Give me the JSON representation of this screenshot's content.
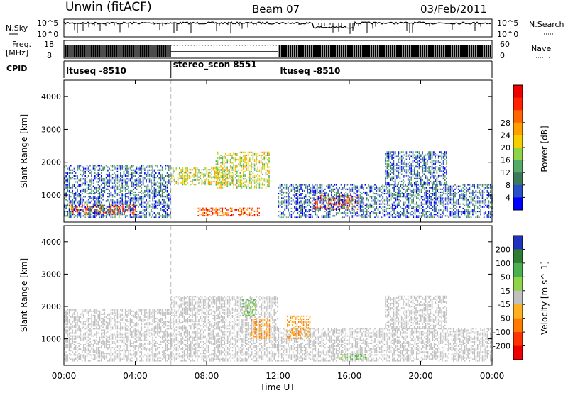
{
  "header": {
    "station": "Unwin (fitACF)",
    "beam": "Beam 07",
    "date": "03/Feb/2011"
  },
  "summary": {
    "nsky_label": "N.Sky",
    "nsky_ticks": [
      "10^5",
      "10^0"
    ],
    "nsearch_label": "N.Search",
    "nsearch_ticks": [
      "10^5",
      "10^0"
    ],
    "freq_label_1": "Freq.",
    "freq_label_2": "[MHz]",
    "freq_ticks": [
      "18",
      "8"
    ],
    "nave_label": "Nave",
    "nave_ticks": [
      "60",
      "0"
    ],
    "cpid_label": "CPID",
    "cpid_segments": [
      {
        "label": "ltuseq -8510",
        "start": 0,
        "end": 6
      },
      {
        "label": "stereo_scon 8551",
        "start": 6,
        "end": 12
      },
      {
        "label": "ltuseq -8510",
        "start": 12,
        "end": 24
      }
    ]
  },
  "chart_data": [
    {
      "type": "heatmap",
      "name": "power",
      "ylabel": "Slant Range [km]",
      "ylim": [
        180,
        4500
      ],
      "yticks": [
        "1000",
        "2000",
        "3000",
        "4000"
      ],
      "xlim": [
        0,
        24
      ],
      "colorbar_label": "Power [dB]",
      "colorbar_ticks": [
        "4",
        "8",
        "12",
        "16",
        "20",
        "24",
        "28"
      ],
      "colorbar_colors": [
        "#0000ff",
        "#2a50c8",
        "#3c7a5a",
        "#55aa66",
        "#8fd34a",
        "#f5d000",
        "#ffa000",
        "#ff6600",
        "#ff2200",
        "#ee0000"
      ],
      "gaps_ut": [
        6,
        12
      ],
      "regions": [
        {
          "t0": 0.3,
          "t1": 4.0,
          "r0": 400,
          "r1": 700,
          "level": "high"
        },
        {
          "t0": 0.0,
          "t1": 6.0,
          "r0": 300,
          "r1": 1900,
          "level": "low"
        },
        {
          "t0": 6.0,
          "t1": 9.5,
          "r0": 1300,
          "r1": 1800,
          "level": "mid"
        },
        {
          "t0": 8.5,
          "t1": 11.5,
          "r0": 1200,
          "r1": 2300,
          "level": "mid"
        },
        {
          "t0": 7.5,
          "t1": 11.0,
          "r0": 350,
          "r1": 600,
          "level": "high"
        },
        {
          "t0": 14.0,
          "t1": 16.5,
          "r0": 550,
          "r1": 1000,
          "level": "high"
        },
        {
          "t0": 12.0,
          "t1": 24.0,
          "r0": 300,
          "r1": 1300,
          "level": "low"
        },
        {
          "t0": 18.0,
          "t1": 21.5,
          "r0": 1300,
          "r1": 2300,
          "level": "low"
        }
      ]
    },
    {
      "type": "heatmap",
      "name": "velocity",
      "ylabel": "Slant Range [km]",
      "ylim": [
        180,
        4500
      ],
      "yticks": [
        "1000",
        "2000",
        "3000",
        "4000"
      ],
      "xlim": [
        0,
        24
      ],
      "colorbar_label": "Velocity [m s^-1]",
      "colorbar_ticks": [
        "200",
        "100",
        "50",
        "15",
        "-15",
        "-50",
        "-100",
        "-200"
      ],
      "colorbar_colors": [
        "#2233bb",
        "#2e7d32",
        "#4caf50",
        "#8fd34a",
        "#c0c0c0",
        "#ffb020",
        "#ff7a00",
        "#ff3300",
        "#ee0000"
      ],
      "gaps_ut": [
        6,
        12
      ],
      "regions": [
        {
          "t0": 0.0,
          "t1": 6.0,
          "r0": 300,
          "r1": 1900,
          "level": "ground"
        },
        {
          "t0": 6.0,
          "t1": 12.0,
          "r0": 300,
          "r1": 2300,
          "level": "ground"
        },
        {
          "t0": 12.0,
          "t1": 24.0,
          "r0": 300,
          "r1": 1300,
          "level": "ground"
        },
        {
          "t0": 18.0,
          "t1": 21.5,
          "r0": 1300,
          "r1": 2300,
          "level": "ground"
        },
        {
          "t0": 10.0,
          "t1": 10.8,
          "r0": 1700,
          "r1": 2200,
          "level": "pos"
        },
        {
          "t0": 10.5,
          "t1": 11.5,
          "r0": 1000,
          "r1": 1600,
          "level": "neg"
        },
        {
          "t0": 12.5,
          "t1": 13.8,
          "r0": 1000,
          "r1": 1700,
          "level": "neg"
        },
        {
          "t0": 15.5,
          "t1": 17.0,
          "r0": 350,
          "r1": 500,
          "level": "pos"
        }
      ]
    }
  ],
  "xaxis": {
    "ticks": [
      "00:00",
      "04:00",
      "08:00",
      "12:00",
      "16:00",
      "20:00",
      "00:00"
    ],
    "label": "Time UT"
  }
}
